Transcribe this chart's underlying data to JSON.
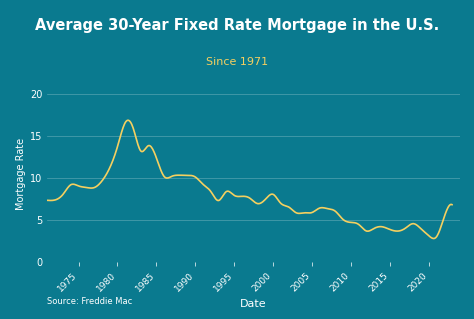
{
  "title": "Average 30-Year Fixed Rate Mortgage in the U.S.",
  "subtitle": "Since 1971",
  "xlabel": "Date",
  "ylabel": "Mortgage Rate",
  "source": "Source: Freddie Mac",
  "bg_color": "#0a7a8f",
  "title_bg_color": "#22b8cc",
  "line_color": "#f5d060",
  "text_color": "#ffffff",
  "subtitle_color": "#f5d060",
  "source_color": "#ffffff",
  "ylim": [
    0,
    21
  ],
  "yticks": [
    0,
    5,
    10,
    15,
    20
  ],
  "years": [
    1971,
    1972,
    1973,
    1974,
    1975,
    1976,
    1977,
    1978,
    1979,
    1980,
    1981,
    1982,
    1983,
    1984,
    1985,
    1986,
    1987,
    1988,
    1989,
    1990,
    1991,
    1992,
    1993,
    1994,
    1995,
    1996,
    1997,
    1998,
    1999,
    2000,
    2001,
    2002,
    2003,
    2004,
    2005,
    2006,
    2007,
    2008,
    2009,
    2010,
    2011,
    2012,
    2013,
    2014,
    2015,
    2016,
    2017,
    2018,
    2019,
    2020,
    2021,
    2022,
    2023
  ],
  "rates": [
    7.33,
    7.38,
    8.04,
    9.19,
    9.05,
    8.87,
    8.85,
    9.64,
    11.2,
    13.74,
    16.63,
    16.04,
    13.24,
    13.88,
    12.43,
    10.19,
    10.21,
    10.34,
    10.32,
    10.13,
    9.25,
    8.39,
    7.31,
    8.38,
    7.93,
    7.81,
    7.6,
    6.94,
    7.44,
    8.05,
    6.97,
    6.54,
    5.83,
    5.84,
    5.87,
    6.41,
    6.34,
    6.03,
    5.04,
    4.69,
    4.45,
    3.66,
    3.98,
    4.17,
    3.85,
    3.65,
    3.99,
    4.54,
    3.94,
    3.11,
    2.96,
    5.34,
    6.81
  ]
}
